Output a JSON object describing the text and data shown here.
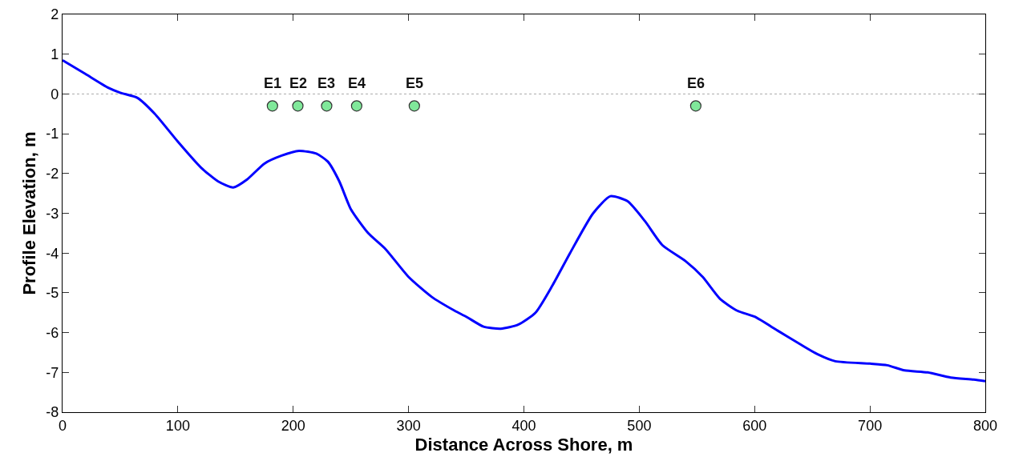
{
  "chart_data": {
    "type": "line",
    "xlabel": "Distance Across Shore, m",
    "ylabel": "Profile Elevation, m",
    "xlim": [
      0,
      800
    ],
    "xticks": [
      0,
      100,
      200,
      300,
      400,
      500,
      600,
      700,
      800
    ],
    "ylim": [
      -8,
      2
    ],
    "yticks": [
      -8,
      -7,
      -6,
      -5,
      -4,
      -3,
      -2,
      -1,
      0,
      1,
      2
    ],
    "grid": false,
    "series": [
      {
        "color": "#0000ff",
        "marker": "none",
        "line_style": "solid",
        "x": [
          0,
          20,
          40,
          50,
          65,
          80,
          100,
          120,
          135,
          148,
          160,
          175,
          190,
          205,
          220,
          230,
          240,
          250,
          265,
          280,
          300,
          320,
          340,
          350,
          365,
          380,
          395,
          410,
          425,
          440,
          460,
          475,
          490,
          505,
          520,
          540,
          555,
          570,
          585,
          600,
          620,
          640,
          655,
          670,
          700,
          715,
          730,
          750,
          770,
          790,
          800
        ],
        "values": [
          0.85,
          0.5,
          0.15,
          0.03,
          -0.1,
          -0.5,
          -1.2,
          -1.85,
          -2.2,
          -2.35,
          -2.15,
          -1.75,
          -1.55,
          -1.43,
          -1.5,
          -1.7,
          -2.2,
          -2.9,
          -3.5,
          -3.9,
          -4.6,
          -5.1,
          -5.45,
          -5.6,
          -5.85,
          -5.9,
          -5.8,
          -5.5,
          -4.8,
          -4.0,
          -3.0,
          -2.57,
          -2.7,
          -3.2,
          -3.8,
          -4.2,
          -4.6,
          -5.15,
          -5.45,
          -5.6,
          -5.95,
          -6.3,
          -6.55,
          -6.72,
          -6.78,
          -6.82,
          -6.95,
          -7.0,
          -7.13,
          -7.18,
          -7.22
        ]
      },
      {
        "type": "scatter",
        "color": "#80e89a",
        "marker": "circle",
        "x": [
          182,
          204,
          229,
          255,
          305,
          549
        ],
        "values": [
          -0.3,
          -0.3,
          -0.3,
          -0.3,
          -0.3,
          -0.3
        ]
      }
    ],
    "ref_lines": [
      {
        "axis": "y",
        "value": 0,
        "color": "#aaaaaa",
        "line_style": "dotted"
      }
    ],
    "annotations": [
      {
        "text": "E1",
        "x": 182,
        "y": -0.3
      },
      {
        "text": "E2",
        "x": 204,
        "y": -0.3
      },
      {
        "text": "E3",
        "x": 229,
        "y": -0.3
      },
      {
        "text": "E4",
        "x": 255,
        "y": -0.3
      },
      {
        "text": "E5",
        "x": 305,
        "y": -0.3
      },
      {
        "text": "E6",
        "x": 549,
        "y": -0.3
      }
    ]
  }
}
